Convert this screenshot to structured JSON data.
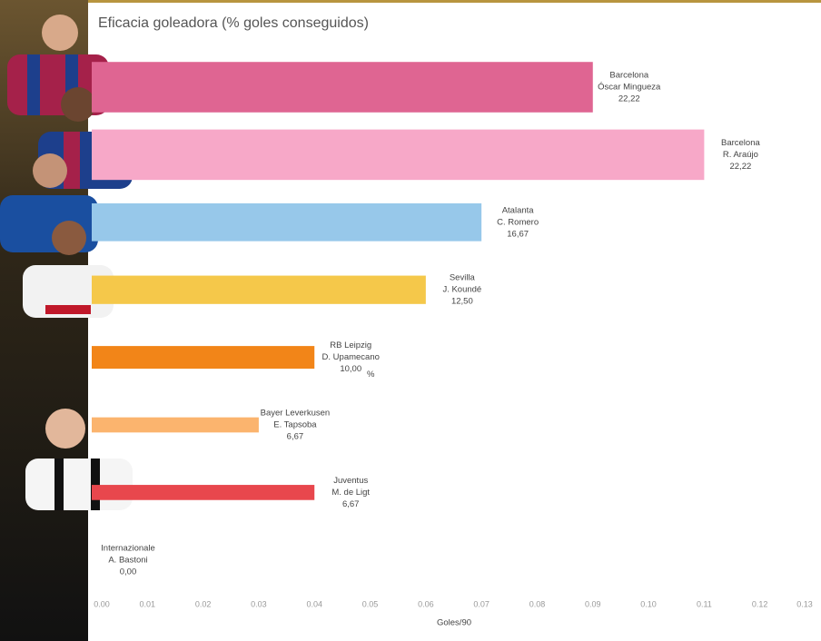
{
  "chart_data": {
    "type": "bar",
    "orientation": "horizontal",
    "title": "Eficacia goleadora (% goles conseguidos)",
    "x_label": "Goles/90",
    "unit_label": "%",
    "clubs": [
      "Barcelona",
      "Barcelona",
      "Atalanta",
      "Sevilla",
      "RB Leipzig",
      "Bayer Leverkusen",
      "Juventus",
      "Internazionale"
    ],
    "players": [
      "Óscar Mingueza",
      "R. Araújo",
      "C. Romero",
      "J. Koundé",
      "D. Upamecano",
      "E. Tapsoba",
      "M. de Ligt",
      "A. Bastoni"
    ],
    "values": [
      0.09,
      0.11,
      0.07,
      0.06,
      0.04,
      0.03,
      0.04,
      0
    ],
    "pct": [
      22.22,
      22.22,
      16.67,
      12.5,
      10,
      6.67,
      6.67,
      0
    ],
    "value_labels": [
      "22,22",
      "22,22",
      "16,67",
      "12,50",
      "10,00",
      "6,67",
      "6,67",
      "0,00"
    ],
    "colors": [
      "#df6592",
      "#f7a8c8",
      "#97c8ea",
      "#f5c84a",
      "#f28518",
      "#fbb46e",
      "#e8474d",
      "#cccccc"
    ],
    "xlim": [
      0,
      0.13
    ],
    "xticks": [
      {
        "value": 0,
        "label": "0.00"
      },
      {
        "value": 0.01,
        "label": "0.01"
      },
      {
        "value": 0.02,
        "label": "0.02"
      },
      {
        "value": 0.03,
        "label": "0.03"
      },
      {
        "value": 0.04,
        "label": "0.04"
      },
      {
        "value": 0.05,
        "label": "0.05"
      },
      {
        "value": 0.06,
        "label": "0.06"
      },
      {
        "value": 0.07,
        "label": "0.07"
      },
      {
        "value": 0.08,
        "label": "0.08"
      },
      {
        "value": 0.09,
        "label": "0.09"
      },
      {
        "value": 0.1,
        "label": "0.10"
      },
      {
        "value": 0.11,
        "label": "0.11"
      },
      {
        "value": 0.12,
        "label": "0.12"
      },
      {
        "value": 0.13,
        "label": "0.13"
      }
    ]
  }
}
